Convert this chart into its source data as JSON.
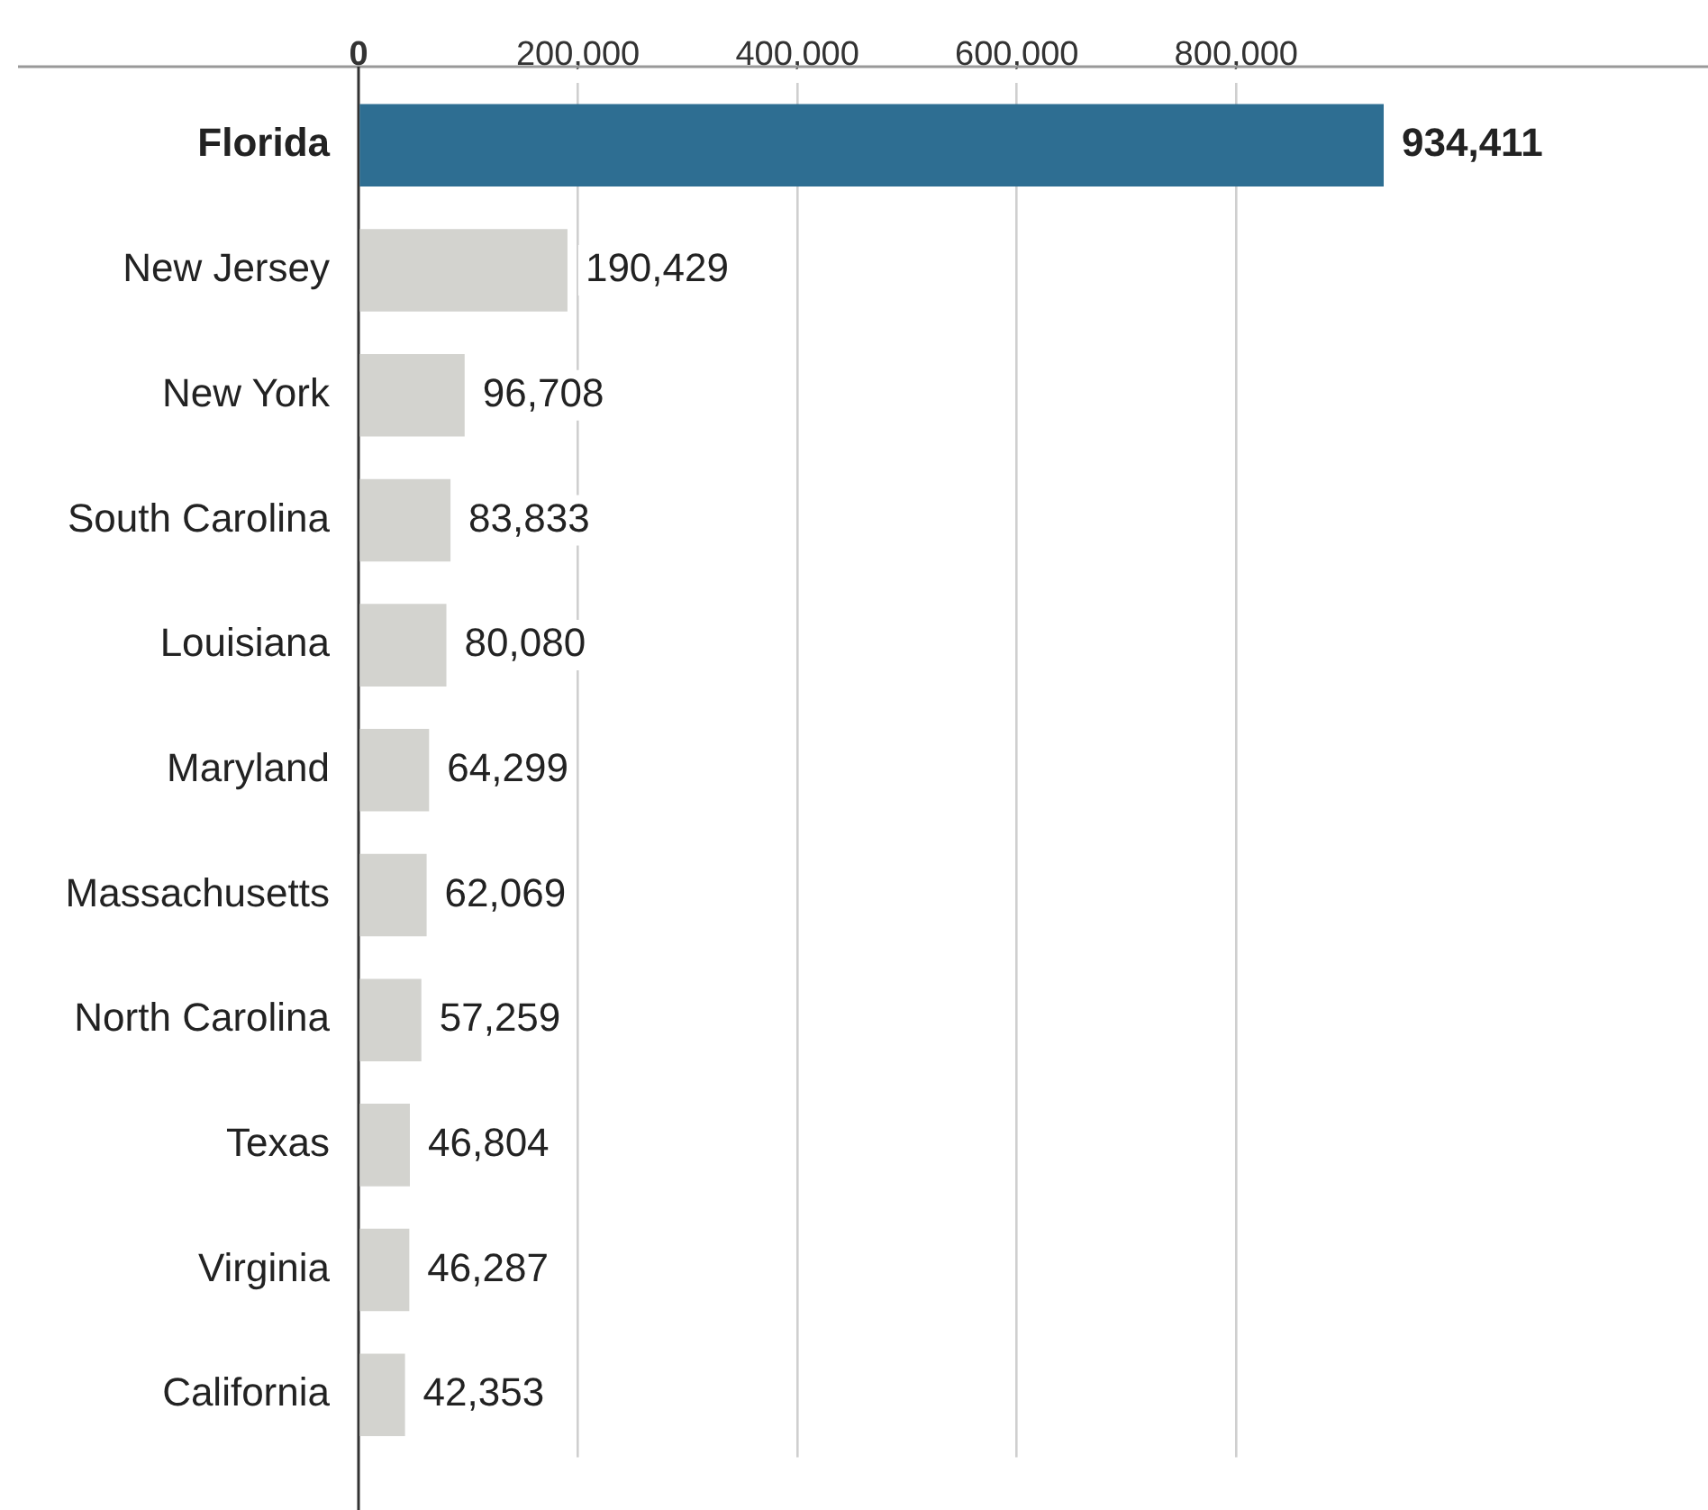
{
  "chart_data": {
    "type": "bar",
    "orientation": "horizontal",
    "categories": [
      "Florida",
      "New Jersey",
      "New York",
      "South Carolina",
      "Louisiana",
      "Maryland",
      "Massachusetts",
      "North Carolina",
      "Texas",
      "Virginia",
      "California"
    ],
    "values": [
      934411,
      190429,
      96708,
      83833,
      80080,
      64299,
      62069,
      57259,
      46804,
      46287,
      42353
    ],
    "colors": [
      "#2e6e92",
      "#d3d3cf",
      "#d3d3cf",
      "#d3d3cf",
      "#d3d3cf",
      "#d3d3cf",
      "#d3d3cf",
      "#d3d3cf",
      "#d3d3cf",
      "#d3d3cf",
      "#d3d3cf"
    ],
    "xlim": [
      0,
      1230000
    ],
    "xticks": [
      0,
      {
        "value": 200000,
        "label": "200,000"
      },
      {
        "value": 400000,
        "label": "400,000"
      },
      {
        "value": 600000,
        "label": "600,000"
      },
      {
        "value": 800000,
        "label": "800,000"
      }
    ],
    "value_labels": [
      "934,411",
      "190,429",
      "96,708",
      "83,833",
      "80,080",
      "64,299",
      "62,069",
      "57,259",
      "46,804",
      "46,287",
      "42,353"
    ],
    "grid": "x",
    "legend": false
  }
}
